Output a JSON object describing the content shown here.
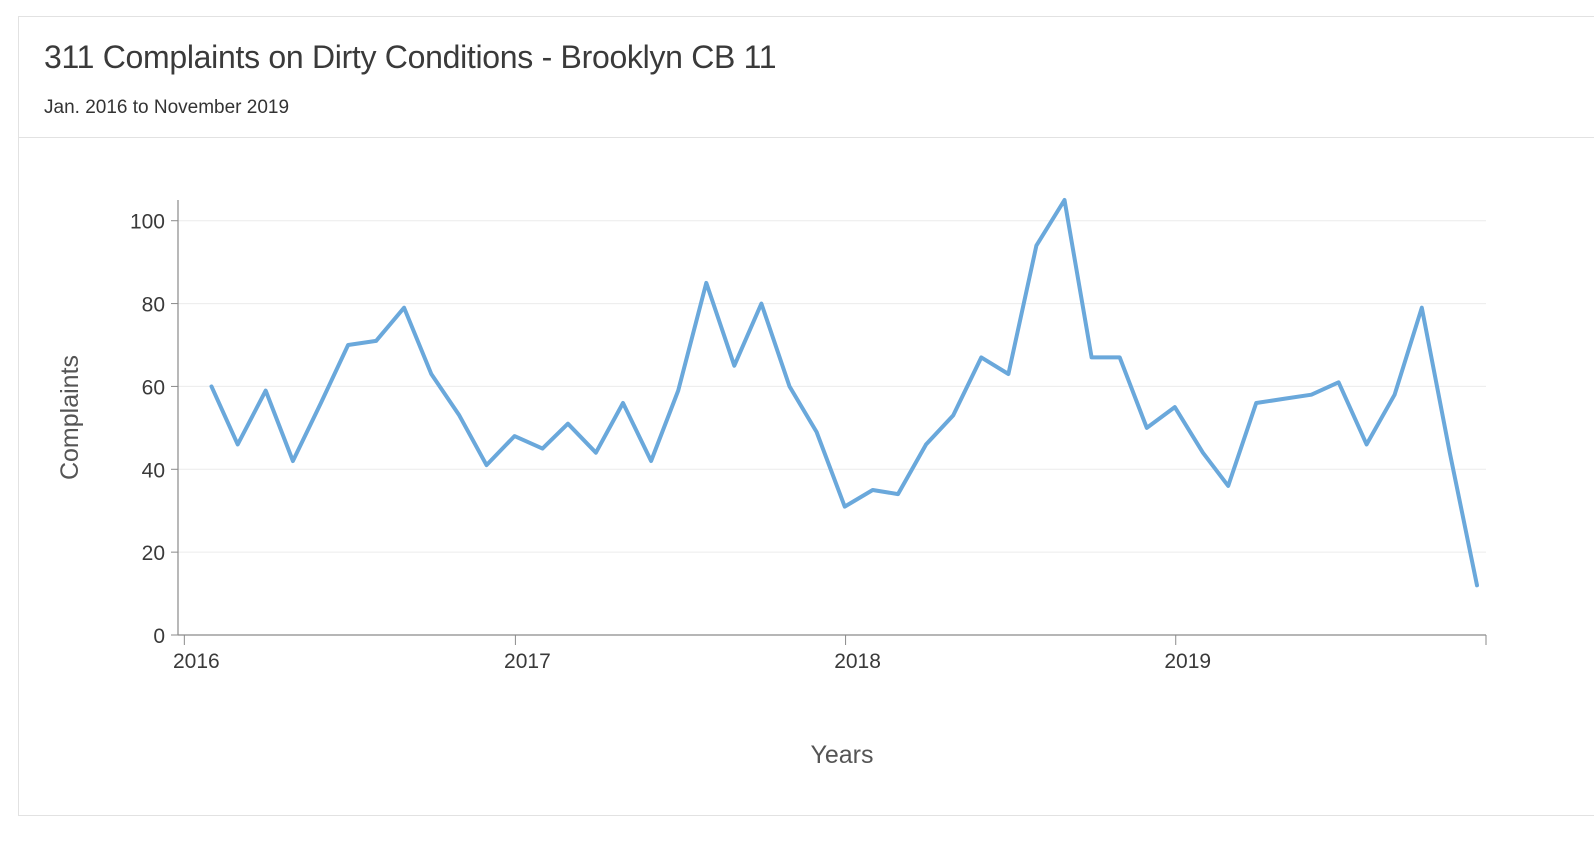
{
  "header": {
    "title": "311 Complaints on Dirty Conditions - Brooklyn CB 11",
    "subtitle": "Jan. 2016 to November 2019"
  },
  "colors": {
    "line": "#6aa8db",
    "grid": "#ececec",
    "axis": "#8a8a8a",
    "border": "#e2e2e2"
  },
  "chart_data": {
    "type": "line",
    "title": "311 Complaints on Dirty Conditions - Brooklyn CB 11",
    "subtitle": "Jan. 2016 to November 2019",
    "xlabel": "Years",
    "ylabel": "Complaints",
    "x_tick_labels": [
      "2016",
      "2017",
      "2018",
      "2019"
    ],
    "x_ticks": [
      "2016-01-01",
      "2017-01-01",
      "2018-01-01",
      "2019-01-01"
    ],
    "xlim": [
      "2015-12-25",
      "2019-12-10"
    ],
    "ylim": [
      0,
      105
    ],
    "y_ticks": [
      0,
      20,
      40,
      60,
      80,
      100
    ],
    "grid": true,
    "legend": "none",
    "series": [
      {
        "x": [
          "2016-01-31",
          "2016-02-29",
          "2016-03-31",
          "2016-04-30",
          "2016-05-31",
          "2016-06-30",
          "2016-07-31",
          "2016-08-31",
          "2016-09-30",
          "2016-10-31",
          "2016-11-30",
          "2016-12-31",
          "2017-01-31",
          "2017-02-28",
          "2017-03-31",
          "2017-04-30",
          "2017-05-31",
          "2017-06-30",
          "2017-07-31",
          "2017-08-31",
          "2017-09-30",
          "2017-10-31",
          "2017-11-30",
          "2017-12-31",
          "2018-01-31",
          "2018-02-28",
          "2018-03-31",
          "2018-04-30",
          "2018-05-31",
          "2018-06-30",
          "2018-07-31",
          "2018-08-31",
          "2018-09-30",
          "2018-10-31",
          "2018-11-30",
          "2018-12-31",
          "2019-01-31",
          "2019-02-28",
          "2019-03-31",
          "2019-04-30",
          "2019-05-31",
          "2019-06-30",
          "2019-07-31",
          "2019-08-31",
          "2019-09-30",
          "2019-10-31",
          "2019-11-30"
        ],
        "values": [
          60,
          46,
          59,
          42,
          56,
          70,
          71,
          79,
          63,
          53,
          41,
          48,
          45,
          51,
          44,
          56,
          42,
          59,
          85,
          65,
          80,
          60,
          49,
          31,
          35,
          34,
          46,
          53,
          67,
          63,
          94,
          105,
          67,
          67,
          50,
          55,
          44,
          36,
          56,
          57,
          58,
          61,
          46,
          58,
          79,
          44,
          12
        ]
      }
    ]
  }
}
